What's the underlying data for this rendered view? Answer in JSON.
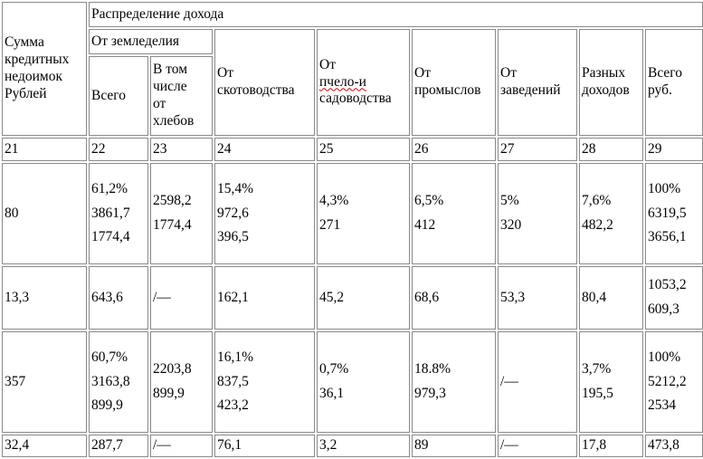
{
  "header": {
    "debt_sum": [
      "Сумма",
      "кредитных",
      "недоимок",
      "Рублей"
    ],
    "income_distribution": "Распределение дохода",
    "from_agriculture": "От земледелия",
    "total": "Всего",
    "incl_grain": [
      "В том",
      "числе",
      "от",
      "хлебов"
    ],
    "livestock": [
      "От",
      "скотоводства"
    ],
    "bee_garden_prefix": "От ",
    "bee_garden_underlined": "пчело-и",
    "bee_garden_rest": "садоводства",
    "trades": [
      "От",
      "промыслов"
    ],
    "establishments": [
      "От",
      "заведений"
    ],
    "misc_income": [
      "Разных",
      "доходов"
    ],
    "total_rub": [
      "Всего",
      "руб."
    ]
  },
  "column_numbers": [
    "21",
    "22",
    "23",
    "24",
    "25",
    "26",
    "27",
    "28",
    "29"
  ],
  "rows": [
    {
      "debt": "80",
      "agri_total": [
        "61,2%",
        "3861,7",
        "1774,4"
      ],
      "grain": [
        "2598,2",
        "1774,4"
      ],
      "livestock": [
        "15,4%",
        "972,6",
        "396,5"
      ],
      "bee_garden": [
        "4,3%",
        "271"
      ],
      "trades": [
        "6,5%",
        "412"
      ],
      "establishments": [
        "5%",
        "320"
      ],
      "misc": [
        "7,6%",
        "482,2"
      ],
      "total": [
        "100%",
        "6319,5",
        "3656,1"
      ]
    },
    {
      "debt": "13,3",
      "agri_total": "643,6",
      "grain": "/—",
      "livestock": "162,1",
      "bee_garden": "45,2",
      "trades": "68,6",
      "establishments": "53,3",
      "misc": "80,4",
      "total": [
        "1053,2",
        "609,3"
      ]
    },
    {
      "debt": "357",
      "agri_total": [
        "60,7%",
        "3163,8",
        "899,9"
      ],
      "grain": [
        "2203,8",
        "899,9"
      ],
      "livestock": [
        "16,1%",
        "837,5",
        "423,2"
      ],
      "bee_garden": [
        "0,7%",
        "36,1"
      ],
      "trades": [
        "18.8%",
        "979,3"
      ],
      "establishments": "/—",
      "misc": [
        "3,7%",
        "195,5"
      ],
      "total": [
        "100%",
        "5212,2",
        "2534"
      ]
    },
    {
      "debt": "32,4",
      "agri_total": "287,7",
      "grain": "/—",
      "livestock": "76,1",
      "bee_garden": "3,2",
      "trades": "89",
      "establishments": "/—",
      "misc": "17,8",
      "total": "473,8"
    }
  ]
}
